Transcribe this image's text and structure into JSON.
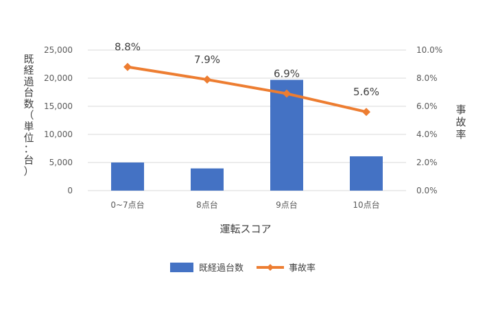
{
  "chart_data": {
    "type": "bar+line",
    "categories": [
      "0~7点台",
      "8点台",
      "9点台",
      "10点台"
    ],
    "series": [
      {
        "name": "既経過台数",
        "type": "bar",
        "axis": "left",
        "color": "#4472C4",
        "values": [
          5000,
          3950,
          19700,
          6100
        ]
      },
      {
        "name": "事故率",
        "type": "line",
        "axis": "right",
        "color": "#ED7D31",
        "marker": "diamond",
        "values": [
          8.8,
          7.9,
          6.9,
          5.6
        ],
        "data_labels": [
          "8.8%",
          "7.9%",
          "6.9%",
          "5.6%"
        ]
      }
    ],
    "xlabel": "運転スコア",
    "ylabel_left": "既経過台数（単位：台）",
    "ylabel_right": "事故率",
    "ylim_left": [
      0,
      25000
    ],
    "ylim_right": [
      0,
      10
    ],
    "yticks_left": [
      "0",
      "5,000",
      "10,000",
      "15,000",
      "20,000",
      "25,000"
    ],
    "yticks_right": [
      "0.0%",
      "2.0%",
      "4.0%",
      "6.0%",
      "8.0%",
      "10.0%"
    ],
    "grid": true,
    "legend": "bottom-center"
  }
}
